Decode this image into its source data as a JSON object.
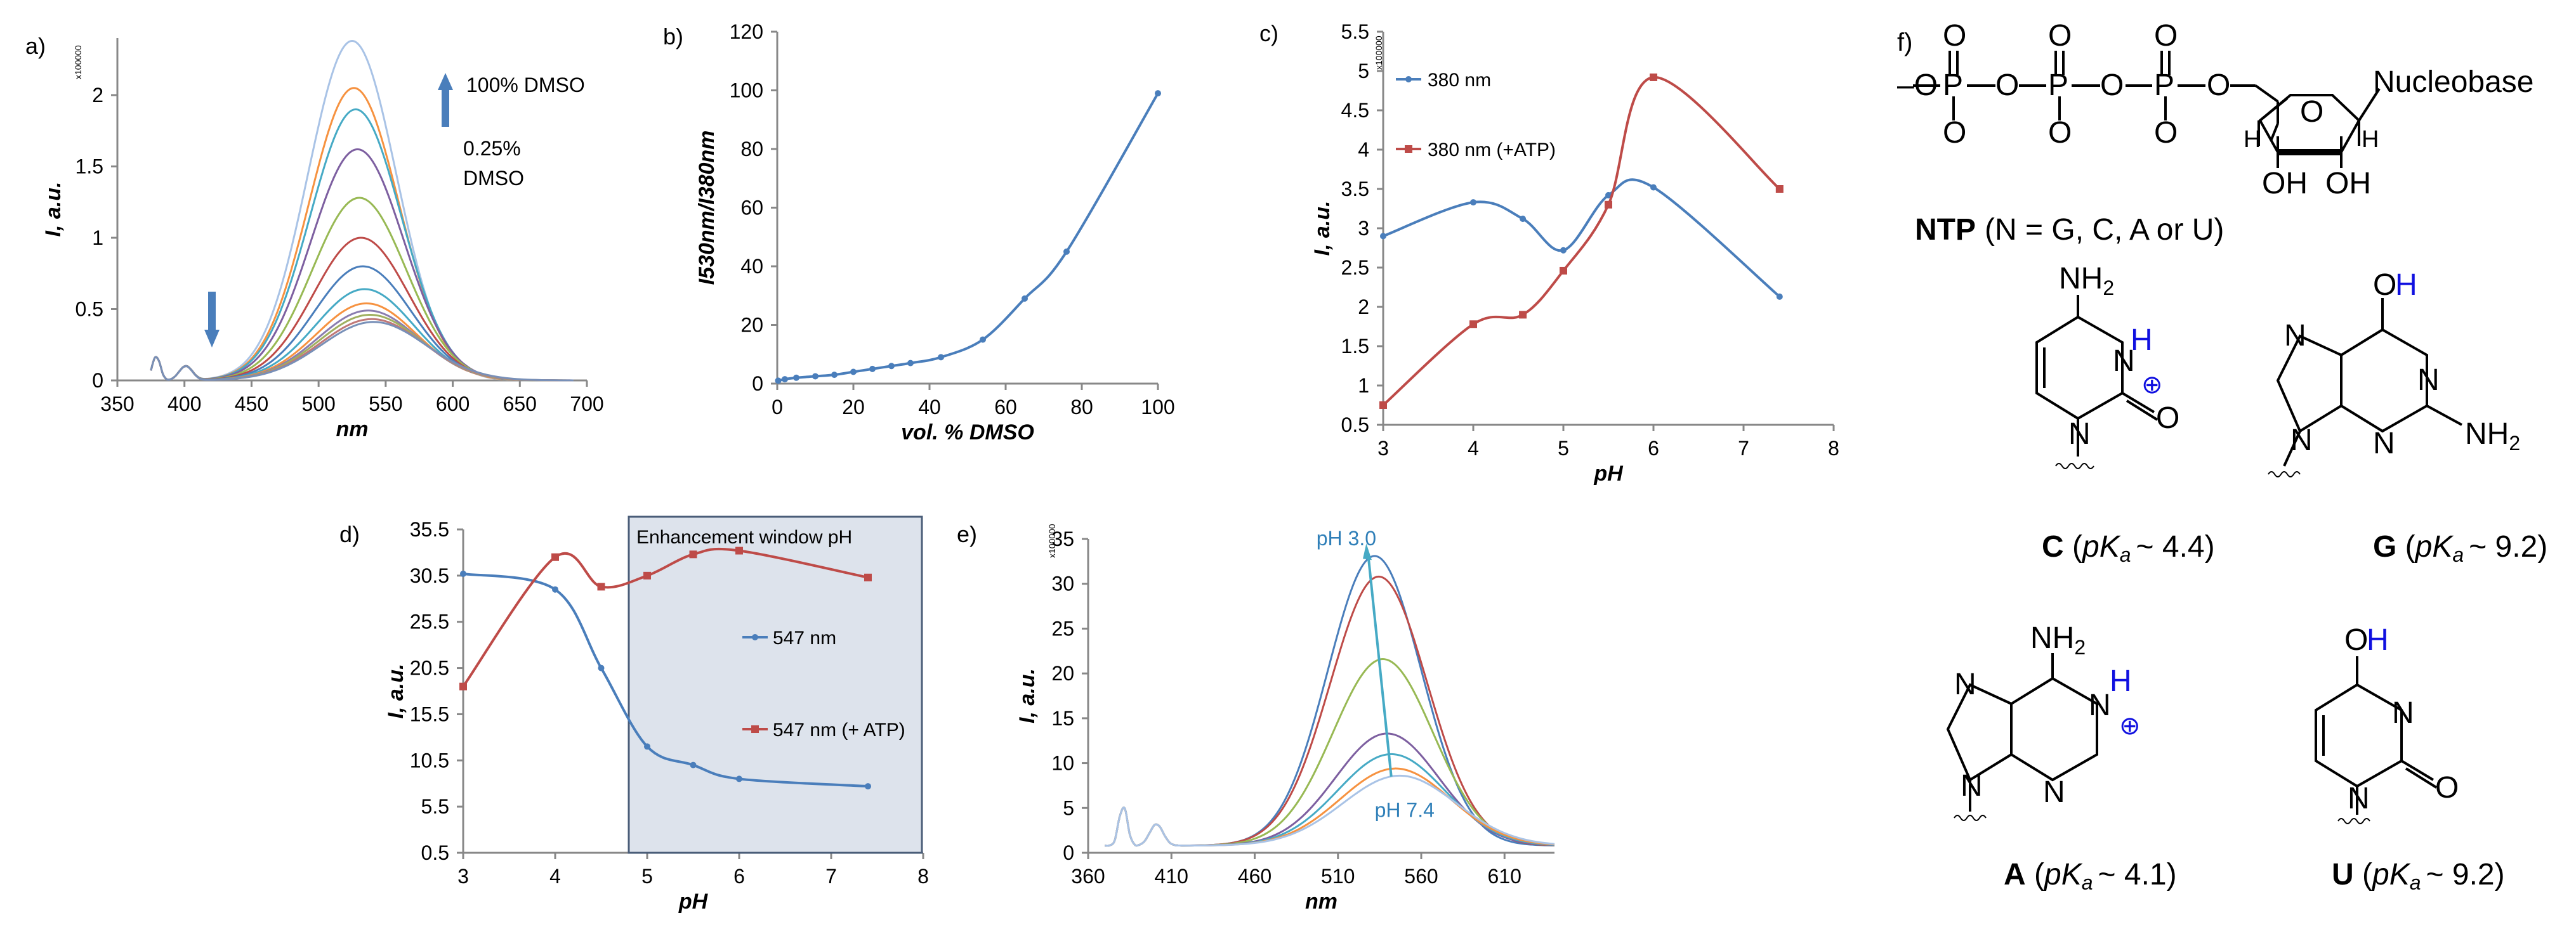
{
  "panels": {
    "a": "a)",
    "b": "b)",
    "c": "c)",
    "d": "d)",
    "e": "e)",
    "f": "f)"
  },
  "scale_note": "x100000",
  "colors": {
    "blue": "#4a7ebb",
    "red": "#be4b48",
    "green": "#98b954",
    "purple": "#7d5fa0",
    "cyan": "#46aac5",
    "orange": "#f69240",
    "lightblue": "#a9c3e6",
    "shade": "#dde3ec"
  },
  "chart_data": [
    {
      "id": "a",
      "type": "line",
      "title": "",
      "xlabel": "nm",
      "ylabel": "I, a.u.",
      "xlim": [
        350,
        700
      ],
      "ylim": [
        0,
        2.4
      ],
      "xticks": [
        350,
        400,
        450,
        500,
        550,
        600,
        650,
        700
      ],
      "yticks": [
        0,
        0.5,
        1,
        1.5,
        2
      ],
      "series_peaks": [
        2.38,
        2.05,
        1.9,
        1.62,
        1.28,
        1.0,
        0.8,
        0.64,
        0.54,
        0.49,
        0.46,
        0.43,
        0.41
      ],
      "annotations": [
        "100% DMSO",
        "0.25%",
        "DMSO"
      ]
    },
    {
      "id": "b",
      "type": "line",
      "xlabel": "vol. % DMSO",
      "ylabel": "I530nm/I380nm",
      "xlim": [
        0,
        100
      ],
      "ylim": [
        0,
        120
      ],
      "xticks": [
        0,
        20,
        40,
        60,
        80,
        100
      ],
      "yticks": [
        0,
        20,
        40,
        60,
        80,
        100,
        120
      ],
      "x": [
        0.25,
        2,
        5,
        10,
        15,
        20,
        25,
        30,
        35,
        43,
        54,
        65,
        76,
        100
      ],
      "values": [
        1,
        1.5,
        2,
        2.5,
        3,
        4,
        5,
        6,
        7,
        9,
        15,
        29,
        45,
        99
      ]
    },
    {
      "id": "c",
      "type": "line",
      "xlabel": "pH",
      "ylabel": "I, a.u.",
      "xlim": [
        3,
        8
      ],
      "ylim": [
        0.5,
        5.5
      ],
      "xticks": [
        3,
        4,
        5,
        6,
        7,
        8
      ],
      "yticks": [
        0.5,
        1,
        1.5,
        2,
        2.5,
        3,
        3.5,
        4,
        4.5,
        5,
        5.5
      ],
      "series": [
        {
          "name": "380 nm",
          "x": [
            3,
            4,
            4.55,
            5,
            5.5,
            6,
            7.4
          ],
          "values": [
            2.9,
            3.33,
            3.12,
            2.72,
            3.42,
            3.52,
            2.13
          ]
        },
        {
          "name": "380 nm (+ATP)",
          "x": [
            3,
            4,
            4.55,
            5,
            5.5,
            6,
            7.4
          ],
          "values": [
            0.75,
            1.78,
            1.9,
            2.46,
            3.3,
            4.92,
            3.5
          ]
        }
      ]
    },
    {
      "id": "d",
      "type": "line",
      "xlabel": "pH",
      "ylabel": "I, a.u.",
      "xlim": [
        3,
        8
      ],
      "ylim": [
        0.5,
        35.5
      ],
      "xticks": [
        3,
        4,
        5,
        6,
        7,
        8
      ],
      "yticks": [
        0.5,
        5.5,
        10.5,
        15.5,
        20.5,
        25.5,
        30.5,
        35.5
      ],
      "window_label": "Enhancement window pH",
      "window_range": [
        4.8,
        8
      ],
      "series": [
        {
          "name": "547 nm",
          "x": [
            3,
            4,
            4.5,
            5,
            5.5,
            6,
            7.4
          ],
          "values": [
            30.7,
            29.0,
            20.5,
            12.0,
            10.0,
            8.5,
            7.7
          ]
        },
        {
          "name": "547 nm (+ ATP)",
          "x": [
            3,
            4,
            4.5,
            5,
            5.5,
            6,
            7.4
          ],
          "values": [
            18.5,
            32.5,
            29.3,
            30.5,
            32.8,
            33.2,
            30.3
          ]
        }
      ]
    },
    {
      "id": "e",
      "type": "line",
      "xlabel": "nm",
      "ylabel": "I, a.u.",
      "xlim": [
        360,
        640
      ],
      "ylim": [
        0,
        35
      ],
      "xticks": [
        360,
        410,
        460,
        510,
        560,
        610
      ],
      "yticks": [
        0,
        5,
        10,
        15,
        20,
        25,
        30,
        35
      ],
      "series_peaks": [
        32.3,
        30.0,
        20.8,
        12.5,
        10.2,
        8.6,
        7.8
      ],
      "annotations": [
        "pH 3.0",
        "pH 7.4"
      ]
    }
  ],
  "structures": {
    "ntp_label": "NTP",
    "ntp_desc": "(N = G, C, A or U)",
    "nucleobase": "Nucleobase",
    "C": {
      "letter": "C",
      "pka": "~ 4.4"
    },
    "G": {
      "letter": "G",
      "pka": "~ 9.2"
    },
    "A": {
      "letter": "A",
      "pka": "~ 4.1"
    },
    "U": {
      "letter": "U",
      "pka": "~ 9.2"
    },
    "pka_prefix": "pK",
    "pka_sub": "a",
    "atoms": {
      "P": "P",
      "O": "O",
      "N": "N",
      "H": "H",
      "OH": "OH",
      "NH2": "NH",
      "two": "2",
      "minus": "–",
      "plus": "⊕"
    }
  }
}
